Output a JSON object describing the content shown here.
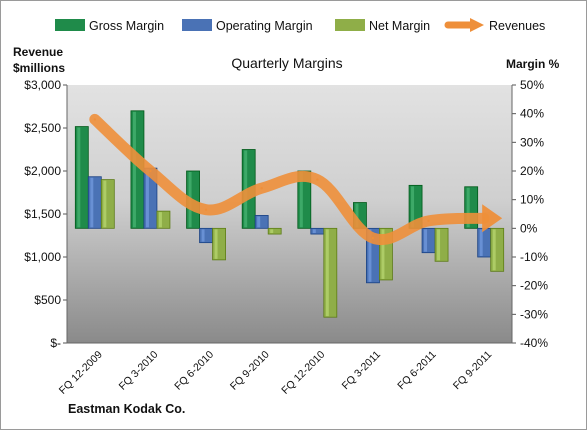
{
  "chart_data": {
    "type": "bar",
    "title": "Quarterly Margins",
    "company": "Eastman  Kodak Co.",
    "y_left_label_line1": "Revenue",
    "y_left_label_line2": "$millions",
    "y_right_label": "Margin %",
    "y_left_ticks": [
      "$3,000",
      "$2,500",
      "$2,000",
      "$1,500",
      "$1,000",
      "$500",
      "$-"
    ],
    "y_right_ticks": [
      "50%",
      "40%",
      "30%",
      "20%",
      "10%",
      "0%",
      "-10%",
      "-20%",
      "-30%",
      "-40%"
    ],
    "ylim_left": [
      0,
      3000
    ],
    "ylim_right": [
      -40,
      50
    ],
    "categories": [
      "FQ 12-2009",
      "FQ 3-2010",
      "FQ 6-2010",
      "FQ 9-2010",
      "FQ 12-2010",
      "FQ 3-2011",
      "FQ 6-2011",
      "FQ 9-2011"
    ],
    "series": [
      {
        "name": "Gross Margin",
        "type": "bar",
        "axis": "right",
        "values": [
          35.5,
          41,
          20,
          27.5,
          20,
          9,
          15,
          14.5
        ]
      },
      {
        "name": "Operating Margin",
        "type": "bar",
        "axis": "right",
        "values": [
          18,
          21,
          -5,
          4.5,
          -2,
          -19,
          -8.5,
          -10
        ]
      },
      {
        "name": "Net Margin",
        "type": "bar",
        "axis": "right",
        "values": [
          17,
          6,
          -11,
          -2,
          -31,
          -18,
          -11.5,
          -15
        ]
      },
      {
        "name": "Revenues",
        "type": "line",
        "axis": "left",
        "values": [
          2600,
          2000,
          1550,
          1800,
          1900,
          1220,
          1420,
          1450
        ]
      }
    ],
    "grid": false,
    "legend": "top"
  },
  "colors": {
    "gross": "#1f8b4a",
    "operating": "#4a72b5",
    "net": "#8fae48",
    "revenue": "#ee8f3a",
    "plot_bg_top": "#dcdcdc",
    "plot_bg_bottom": "#8e8e8e"
  }
}
